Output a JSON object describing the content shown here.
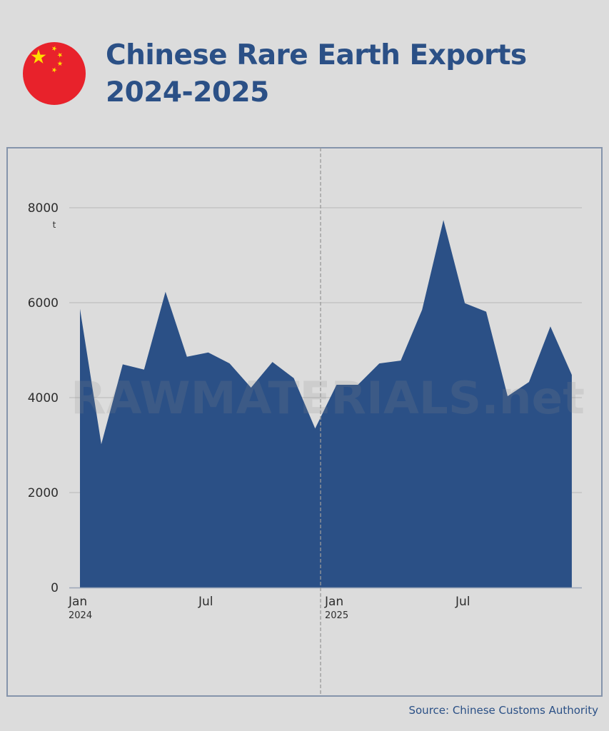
{
  "header": {
    "flag_icon": "china-flag-icon",
    "title_line1": "Chinese Rare Earth Exports",
    "title_line2": "2024-2025"
  },
  "colors": {
    "background": "#dcdcdc",
    "area_fill": "#2b5086",
    "title": "#2b5086",
    "frame_border": "#8594ab",
    "grid": "#b9b9b9",
    "flag_red": "#e8222b",
    "flag_star": "#ffde00"
  },
  "watermark": "RAWMATERIALS.net",
  "source": "Source: Chinese Customs Authority",
  "chart_data": {
    "type": "area",
    "title": "Chinese Rare Earth Exports 2024-2025",
    "xlabel": "",
    "ylabel": "t",
    "unit": "t",
    "ylim": [
      0,
      9000
    ],
    "yticks": [
      0,
      2000,
      4000,
      6000,
      8000
    ],
    "grid": true,
    "legend": "none",
    "x": [
      "Jan 2024",
      "Feb 2024",
      "Mar 2024",
      "Apr 2024",
      "May 2024",
      "Jun 2024",
      "Jul 2024",
      "Aug 2024",
      "Sep 2024",
      "Oct 2024",
      "Nov 2024",
      "Dec 2024",
      "Jan 2025",
      "Feb 2025",
      "Mar 2025",
      "Apr 2025",
      "May 2025",
      "Jun 2025",
      "Jul 2025",
      "Aug 2025",
      "Sep 2025",
      "Oct 2025",
      "Nov 2025",
      "Dec 2025"
    ],
    "xtick_labels": [
      {
        "index": 0,
        "label": "Jan",
        "sub": "2024"
      },
      {
        "index": 6,
        "label": "Jul",
        "sub": ""
      },
      {
        "index": 12,
        "label": "Jan",
        "sub": "2025"
      },
      {
        "index": 18,
        "label": "Jul",
        "sub": ""
      }
    ],
    "series": [
      {
        "name": "Rare earth exports",
        "values": [
          5870,
          3020,
          4700,
          4590,
          6230,
          4860,
          4950,
          4720,
          4210,
          4750,
          4410,
          3350,
          4270,
          4270,
          4720,
          4780,
          5850,
          7740,
          5990,
          5810,
          4030,
          4330,
          5500,
          4480
        ]
      }
    ],
    "annotations": [
      {
        "type": "vertical-dashed-line",
        "between": [
          "Dec 2024",
          "Jan 2025"
        ]
      }
    ]
  }
}
